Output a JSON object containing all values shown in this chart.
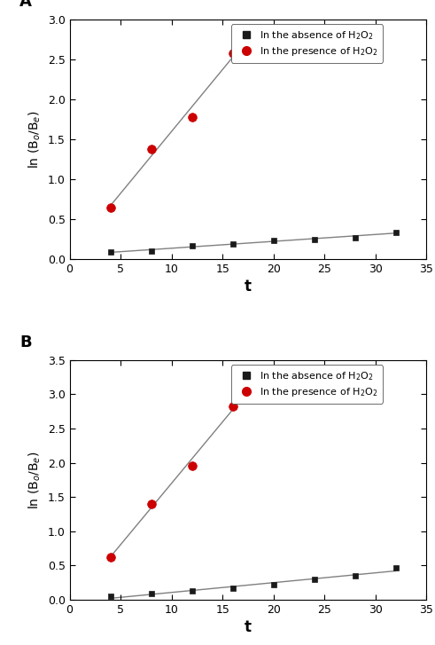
{
  "panel_A": {
    "label": "A",
    "red_x": [
      4,
      8,
      12,
      16
    ],
    "red_y": [
      0.65,
      1.38,
      1.78,
      2.58
    ],
    "black_x": [
      4,
      8,
      12,
      16,
      20,
      24,
      28,
      32
    ],
    "black_y": [
      0.09,
      0.1,
      0.17,
      0.19,
      0.24,
      0.25,
      0.27,
      0.34
    ],
    "ylim": [
      0.0,
      3.0
    ],
    "yticks": [
      0.0,
      0.5,
      1.0,
      1.5,
      2.0,
      2.5,
      3.0
    ]
  },
  "panel_B": {
    "label": "B",
    "red_x": [
      4,
      8,
      12,
      16
    ],
    "red_y": [
      0.62,
      1.4,
      1.96,
      2.82
    ],
    "black_x": [
      4,
      8,
      12,
      16,
      20,
      24,
      28,
      32
    ],
    "black_y": [
      0.05,
      0.09,
      0.13,
      0.17,
      0.22,
      0.3,
      0.35,
      0.47
    ],
    "ylim": [
      0.0,
      3.5
    ],
    "yticks": [
      0.0,
      0.5,
      1.0,
      1.5,
      2.0,
      2.5,
      3.0,
      3.5
    ]
  },
  "xlim": [
    0,
    35
  ],
  "xticks": [
    0,
    5,
    10,
    15,
    20,
    25,
    30,
    35
  ],
  "xlabel": "t",
  "ylabel": "ln (B$_o$/B$_e$)",
  "red_color": "#cc0000",
  "black_color": "#1a1a1a",
  "line_color": "#808080",
  "legend_absence": "In the absence of H$_2$O$_2$",
  "legend_presence": "In the presence of H$_2$O$_2$",
  "red_marker_size": 7,
  "black_marker_size": 5,
  "line_width": 1.0
}
